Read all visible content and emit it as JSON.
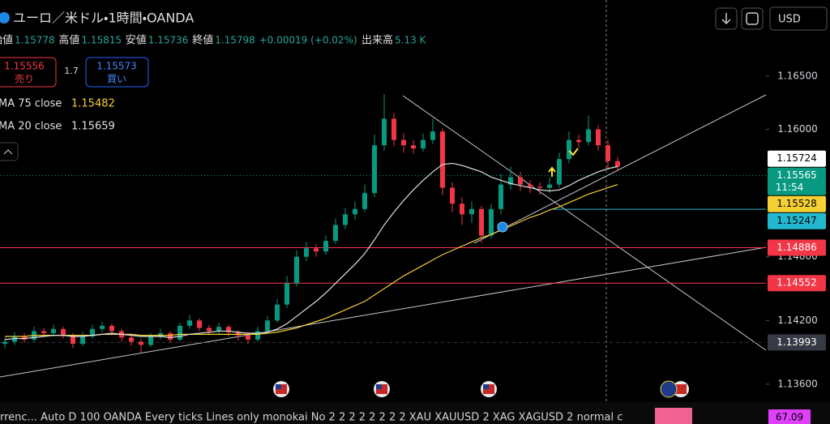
{
  "header": {
    "symbol": "ユーロ／米ドル・1時間・OANDA",
    "ohlc": [
      {
        "label": "始値",
        "value": "1.15778"
      },
      {
        "label": "高値",
        "value": "1.15815"
      },
      {
        "label": "安値",
        "value": "1.15736"
      },
      {
        "label": "終値",
        "value": "1.15798"
      }
    ],
    "change": "+0.00019 (+0.02%)",
    "volume_label": "出来高",
    "volume": "5.13 K",
    "currency": "USD"
  },
  "trade": {
    "sell_price": "1.15556",
    "sell_label": "売り",
    "spread": "1.7",
    "buy_price": "1.15573",
    "buy_label": "買い"
  },
  "bottom_bar": {
    "text": "rrenc...   Auto D 100 OANDA Every ticks Lines only monokai No 2 2 2 2 2 2 2 2 XAU XAUUSD 2 XAG XAGUSD 2 normal c",
    "value": "67.09"
  },
  "chart_data": {
    "type": "candlestick",
    "up_color": "#089981",
    "down_color": "#f23645",
    "ylim": [
      1.13439,
      1.17218
    ],
    "yticks": [
      {
        "value": 1.165,
        "label": "1.16500"
      },
      {
        "value": 1.16,
        "label": "1.16000"
      },
      {
        "value": 1.148,
        "label": "1.14800"
      },
      {
        "value": 1.142,
        "label": "1.14200"
      },
      {
        "value": 1.136,
        "label": "1.13600"
      }
    ],
    "open": [
      1.1398,
      1.14,
      1.1405,
      1.1402,
      1.141,
      1.1408,
      1.1412,
      1.1406,
      1.1398,
      1.1405,
      1.1412,
      1.1415,
      1.141,
      1.1404,
      1.14,
      1.1397,
      1.1405,
      1.1408,
      1.1402,
      1.1415,
      1.142,
      1.1413,
      1.141,
      1.1414,
      1.1409,
      1.1406,
      1.1402,
      1.141,
      1.142,
      1.1435,
      1.1455,
      1.148,
      1.1488,
      1.1485,
      1.1495,
      1.151,
      1.152,
      1.1525,
      1.154,
      1.1585,
      1.161,
      1.159,
      1.1585,
      1.1582,
      1.159,
      1.1598,
      1.1545,
      1.153,
      1.152,
      1.1525,
      1.15,
      1.1525,
      1.1548,
      1.1555,
      1.1548,
      1.1546,
      1.1545,
      1.1548,
      1.1572,
      1.159,
      1.1588,
      1.16,
      1.1585,
      1.157
    ],
    "high": [
      1.1404,
      1.1409,
      1.1408,
      1.1414,
      1.1413,
      1.1416,
      1.1414,
      1.1408,
      1.1409,
      1.1416,
      1.1419,
      1.1417,
      1.1412,
      1.1407,
      1.1403,
      1.1408,
      1.1412,
      1.141,
      1.1418,
      1.1425,
      1.1422,
      1.1416,
      1.1418,
      1.1416,
      1.1411,
      1.1409,
      1.1414,
      1.1424,
      1.144,
      1.1462,
      1.1486,
      1.1494,
      1.1492,
      1.15,
      1.1516,
      1.1526,
      1.1532,
      1.1548,
      1.1595,
      1.1633,
      1.1615,
      1.1596,
      1.159,
      1.1596,
      1.161,
      1.1601,
      1.155,
      1.1536,
      1.1532,
      1.1528,
      1.153,
      1.1558,
      1.1565,
      1.156,
      1.1552,
      1.155,
      1.1555,
      1.1578,
      1.1598,
      1.1595,
      1.1613,
      1.1604,
      1.159,
      1.1574
    ],
    "low": [
      1.1394,
      1.1397,
      1.1399,
      1.14,
      1.1405,
      1.1405,
      1.1403,
      1.1394,
      1.1396,
      1.1403,
      1.1409,
      1.1407,
      1.14,
      1.1396,
      1.139,
      1.1395,
      1.1402,
      1.1399,
      1.14,
      1.1412,
      1.141,
      1.1406,
      1.1407,
      1.1405,
      1.1401,
      1.1398,
      1.14,
      1.1408,
      1.1418,
      1.1432,
      1.1452,
      1.1476,
      1.148,
      1.1482,
      1.1492,
      1.1506,
      1.1515,
      1.1522,
      1.1536,
      1.158,
      1.1584,
      1.1578,
      1.1577,
      1.1579,
      1.1586,
      1.1538,
      1.1522,
      1.151,
      1.1512,
      1.1493,
      1.1497,
      1.152,
      1.1543,
      1.1542,
      1.154,
      1.1538,
      1.154,
      1.1545,
      1.1568,
      1.1583,
      1.1585,
      1.158,
      1.1562,
      1.156
    ],
    "close": [
      1.14,
      1.1405,
      1.1402,
      1.141,
      1.1408,
      1.1412,
      1.1406,
      1.1398,
      1.1405,
      1.1412,
      1.1415,
      1.141,
      1.1404,
      1.14,
      1.1397,
      1.1405,
      1.1408,
      1.1402,
      1.1415,
      1.142,
      1.1413,
      1.141,
      1.1414,
      1.1409,
      1.1406,
      1.1402,
      1.141,
      1.142,
      1.1435,
      1.1455,
      1.148,
      1.1488,
      1.1485,
      1.1495,
      1.151,
      1.152,
      1.1525,
      1.154,
      1.1585,
      1.161,
      1.159,
      1.1585,
      1.1582,
      1.159,
      1.1598,
      1.1545,
      1.153,
      1.152,
      1.1525,
      1.15,
      1.1525,
      1.1548,
      1.1555,
      1.1548,
      1.1546,
      1.1545,
      1.1548,
      1.1572,
      1.159,
      1.1588,
      1.16,
      1.1585,
      1.157,
      1.1565
    ],
    "ma": [
      {
        "name": "MA 75 close",
        "last_value": 1.15482,
        "color": "#f5d033",
        "values": [
          1.1405,
          1.1405,
          1.1405,
          1.1406,
          1.1406,
          1.1406,
          1.1406,
          1.1406,
          1.1406,
          1.1406,
          1.1407,
          1.1407,
          1.1407,
          1.1407,
          1.1406,
          1.1406,
          1.1406,
          1.1406,
          1.1407,
          1.1407,
          1.1407,
          1.1407,
          1.1407,
          1.1407,
          1.1407,
          1.1407,
          1.1407,
          1.1408,
          1.1409,
          1.1411,
          1.1413,
          1.1416,
          1.1419,
          1.1422,
          1.1426,
          1.143,
          1.1434,
          1.1438,
          1.1444,
          1.145,
          1.1456,
          1.1462,
          1.1467,
          1.1472,
          1.1477,
          1.1482,
          1.1486,
          1.149,
          1.1494,
          1.1498,
          1.1501,
          1.1505,
          1.1509,
          1.1513,
          1.1517,
          1.152,
          1.1524,
          1.1527,
          1.1531,
          1.1535,
          1.1539,
          1.1542,
          1.1545,
          1.1548
        ]
      },
      {
        "name": "MA 20 close",
        "last_value": 1.15659,
        "color": "#e0e0e0",
        "values": [
          1.1402,
          1.1403,
          1.1403,
          1.1404,
          1.1405,
          1.1406,
          1.1406,
          1.1405,
          1.1405,
          1.1406,
          1.1407,
          1.1408,
          1.1407,
          1.1406,
          1.1405,
          1.1405,
          1.1405,
          1.1404,
          1.1405,
          1.1407,
          1.1408,
          1.1409,
          1.141,
          1.141,
          1.1409,
          1.1408,
          1.1408,
          1.1409,
          1.1412,
          1.1417,
          1.1424,
          1.1431,
          1.1438,
          1.1446,
          1.1455,
          1.1464,
          1.1473,
          1.1483,
          1.1496,
          1.151,
          1.1522,
          1.1533,
          1.1543,
          1.1552,
          1.156,
          1.1567,
          1.1568,
          1.1566,
          1.1563,
          1.156,
          1.1555,
          1.1552,
          1.1549,
          1.1547,
          1.1545,
          1.1543,
          1.1542,
          1.1543,
          1.1547,
          1.1552,
          1.1556,
          1.156,
          1.1563,
          1.1565
        ]
      }
    ],
    "price_markers": [
      {
        "value": 1.15724,
        "color": "#ffffff",
        "text_color": "#000000",
        "line_style": "none"
      },
      {
        "value": 1.15565,
        "sublabel": "11:54",
        "color": "#089981",
        "text_color": "#ffffff",
        "line_style": "dotted"
      },
      {
        "value": 1.15528,
        "color": "#f5d033",
        "text_color": "#000000",
        "line_style": "none"
      },
      {
        "value": 1.15247,
        "color": "#22b8cf",
        "text_color": "#000000",
        "line_style": "partial"
      },
      {
        "value": 1.14886,
        "color": "#f23645",
        "text_color": "#ffffff",
        "line_style": "solid"
      },
      {
        "value": 1.14552,
        "color": "#f23645",
        "text_color": "#ffffff",
        "line_style": "solid"
      },
      {
        "value": 1.13993,
        "color": "#363a45",
        "text_color": "#ffffff",
        "line_style": "dashed"
      }
    ]
  }
}
